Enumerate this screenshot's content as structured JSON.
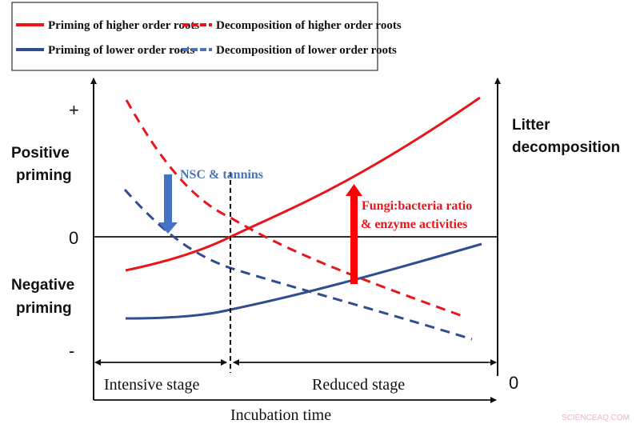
{
  "legend": {
    "items": [
      {
        "label": "Priming of higher order roots",
        "color": "#e8161b",
        "style": "solid"
      },
      {
        "label": "Decomposition of higher order roots",
        "color": "#e8161b",
        "style": "dashed"
      },
      {
        "label": "Priming of lower order roots",
        "color": "#2f4d8f",
        "style": "solid"
      },
      {
        "label": "Decomposition of lower order roots",
        "color": "#4a73b8",
        "style": "dashed"
      }
    ]
  },
  "axes": {
    "left_plus": "+",
    "left_zero": "0",
    "left_minus": "-",
    "left_upper_label": [
      "Positive",
      "priming"
    ],
    "left_lower_label": [
      "Negative",
      "priming"
    ],
    "right_label": [
      "Litter",
      "decomposition"
    ],
    "right_zero": "0",
    "x_label": "Incubation time"
  },
  "stages": {
    "intensive": "Intensive stage",
    "reduced": "Reduced stage"
  },
  "annotations": {
    "nsc": "NSC & tannins",
    "fungi": [
      "Fungi:bacteria ratio",
      "& enzyme activities"
    ]
  },
  "colors": {
    "red": "#e8161b",
    "blue_dark": "#2f4d8f",
    "blue_light": "#4a73b8",
    "arrow_blue": "#4472c4"
  },
  "watermark": "SCIENCEAQ.COM"
}
